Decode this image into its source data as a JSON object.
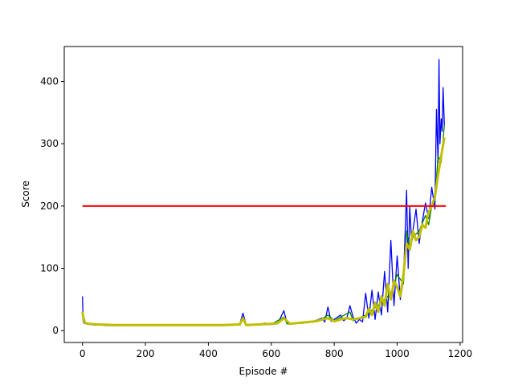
{
  "chart_data": {
    "type": "line",
    "title": "",
    "xlabel": "Episode #",
    "ylabel": "Score",
    "xlim": [
      -58,
      1208
    ],
    "ylim": [
      -19,
      456
    ],
    "xticks": [
      0,
      200,
      400,
      600,
      800,
      1000,
      1200
    ],
    "yticks": [
      0,
      100,
      200,
      300,
      400
    ],
    "grid": false,
    "legend": "none",
    "series": [
      {
        "color": "#0000ff",
        "x": [
          0,
          2,
          5,
          10,
          20,
          40,
          60,
          80,
          100,
          150,
          200,
          250,
          300,
          350,
          400,
          450,
          480,
          500,
          510,
          520,
          540,
          560,
          580,
          600,
          620,
          640,
          650,
          660,
          680,
          700,
          720,
          740,
          760,
          770,
          780,
          790,
          800,
          820,
          830,
          840,
          850,
          860,
          870,
          880,
          890,
          900,
          910,
          920,
          930,
          940,
          950,
          960,
          970,
          980,
          990,
          1000,
          1010,
          1020,
          1030,
          1035,
          1040,
          1045,
          1050,
          1060,
          1070,
          1080,
          1090,
          1100,
          1110,
          1120,
          1125,
          1130,
          1133,
          1136,
          1140,
          1143,
          1146,
          1150
        ],
        "y": [
          55,
          15,
          12,
          11,
          10,
          9,
          9,
          8,
          8,
          8,
          8,
          8,
          8,
          8,
          8,
          8,
          9,
          11,
          28,
          10,
          9,
          10,
          12,
          10,
          11,
          32,
          12,
          10,
          13,
          12,
          14,
          16,
          20,
          14,
          38,
          15,
          18,
          25,
          16,
          20,
          40,
          22,
          12,
          18,
          14,
          60,
          20,
          65,
          18,
          62,
          25,
          95,
          30,
          145,
          40,
          120,
          50,
          80,
          225,
          100,
          200,
          150,
          160,
          195,
          140,
          175,
          205,
          180,
          230,
          195,
          355,
          270,
          435,
          300,
          340,
          320,
          390,
          330
        ]
      },
      {
        "color": "#008000",
        "x": [
          0,
          10,
          50,
          100,
          200,
          300,
          400,
          500,
          510,
          520,
          600,
          640,
          650,
          700,
          750,
          780,
          800,
          850,
          860,
          900,
          950,
          980,
          1000,
          1020,
          1030,
          1040,
          1050,
          1070,
          1090,
          1100,
          1110,
          1120,
          1130,
          1140,
          1150
        ],
        "y": [
          28,
          12,
          10,
          9,
          9,
          9,
          9,
          10,
          22,
          9,
          10,
          22,
          11,
          12,
          15,
          25,
          16,
          30,
          16,
          25,
          45,
          60,
          90,
          75,
          160,
          130,
          150,
          160,
          185,
          170,
          200,
          210,
          280,
          270,
          330
        ]
      },
      {
        "color": "#bfbf00",
        "x": [
          0,
          5,
          10,
          20,
          50,
          100,
          150,
          200,
          250,
          300,
          350,
          400,
          450,
          500,
          510,
          520,
          560,
          600,
          620,
          640,
          660,
          700,
          740,
          780,
          800,
          820,
          840,
          860,
          880,
          900,
          910,
          920,
          930,
          940,
          950,
          960,
          970,
          980,
          990,
          1000,
          1010,
          1020,
          1030,
          1040,
          1050,
          1060,
          1070,
          1080,
          1090,
          1100,
          1110,
          1120,
          1130,
          1140,
          1150
        ],
        "y": [
          30,
          15,
          12,
          11,
          10,
          9,
          9,
          9,
          9,
          9,
          9,
          9,
          9,
          10,
          20,
          9,
          10,
          11,
          12,
          20,
          11,
          13,
          15,
          20,
          15,
          18,
          20,
          18,
          20,
          22,
          35,
          25,
          45,
          30,
          55,
          40,
          75,
          50,
          80,
          70,
          55,
          90,
          140,
          130,
          160,
          145,
          150,
          170,
          165,
          190,
          200,
          215,
          250,
          280,
          310
        ]
      },
      {
        "color": "#ff0000",
        "x": [
          0,
          1155
        ],
        "y": [
          200,
          200
        ]
      }
    ]
  }
}
